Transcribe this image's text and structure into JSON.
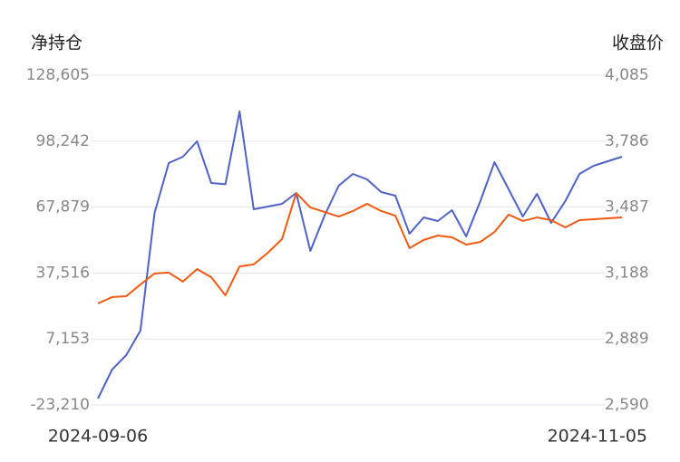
{
  "chart_data": {
    "type": "line",
    "y_title": "净持仓",
    "y2_title": "收盘价",
    "categories": [
      "2024-09-06",
      null,
      null,
      null,
      null,
      null,
      null,
      null,
      null,
      null,
      null,
      null,
      null,
      null,
      null,
      null,
      null,
      null,
      null,
      null,
      null,
      null,
      null,
      null,
      null,
      null,
      null,
      null,
      null,
      null,
      null,
      null,
      null,
      null,
      null,
      null,
      null,
      "2024-11-05"
    ],
    "series": [
      {
        "color": "#4e63c4",
        "values": [
          -20289,
          -6943,
          -270,
          10991,
          65210,
          88149,
          91069,
          98159,
          78974,
          78391,
          111922,
          66879,
          68130,
          69381,
          74386,
          47693,
          63959,
          77722,
          83144,
          80642,
          74803,
          73135,
          55618,
          63125,
          61457,
          66462,
          54367,
          70632,
          88566,
          76054,
          63542,
          73969,
          60623,
          70632,
          83144,
          86898,
          88983,
          91069
        ]
      },
      {
        "color": "#f05a12",
        "axis": "y2",
        "values": [
          3050,
          3079,
          3083,
          3136,
          3186,
          3190,
          3149,
          3206,
          3169,
          3087,
          3218,
          3227,
          3280,
          3342,
          3551,
          3485,
          3465,
          3444,
          3469,
          3502,
          3469,
          3448,
          3301,
          3338,
          3358,
          3350,
          3317,
          3329,
          3374,
          3453,
          3424,
          3440,
          3428,
          3395,
          3428,
          3432,
          3436,
          3440
        ]
      }
    ],
    "ylim": [
      -23210,
      128605
    ],
    "yticks": [
      {
        "value": -23210,
        "label": "-23,210"
      },
      {
        "value": 7153,
        "label": "7,153"
      },
      {
        "value": 37516,
        "label": "37,516"
      },
      {
        "value": 67879,
        "label": "67,879"
      },
      {
        "value": 98242,
        "label": "98,242"
      },
      {
        "value": 128605,
        "label": "128,605"
      }
    ],
    "y2lim": [
      2590,
      4085
    ],
    "y2ticks": [
      {
        "value": 2590,
        "label": "2,590"
      },
      {
        "value": 2889,
        "label": "2,889"
      },
      {
        "value": 3188,
        "label": "3,188"
      },
      {
        "value": 3487,
        "label": "3,487"
      },
      {
        "value": 3786,
        "label": "3,786"
      },
      {
        "value": 4085,
        "label": "4,085"
      }
    ],
    "grid": true
  }
}
